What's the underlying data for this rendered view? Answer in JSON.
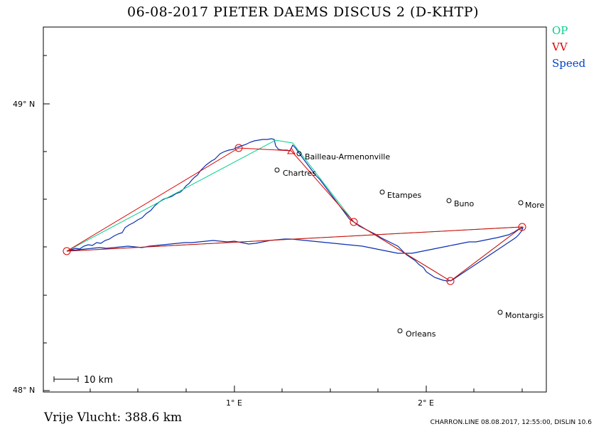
{
  "title": "06-08-2017    PIETER DAEMS    DISCUS 2 (D-KHTP)",
  "legend": [
    {
      "label": "OP",
      "color": "#00d08a"
    },
    {
      "label": "VV",
      "color": "#e00000"
    },
    {
      "label": "Speed",
      "color": "#0044cc"
    }
  ],
  "axes": {
    "y_labels": [
      "49° N",
      "48° N"
    ],
    "x_labels": [
      "1° E",
      "2° E"
    ]
  },
  "scale_bar": "10 km",
  "places": [
    {
      "name": "Bailleau-Armenonville",
      "lon": 1.34,
      "lat": 48.8
    },
    {
      "name": "Chartres",
      "lon": 1.23,
      "lat": 48.73
    },
    {
      "name": "Etampes",
      "lon": 1.76,
      "lat": 48.66
    },
    {
      "name": "Buno",
      "lon": 2.12,
      "lat": 48.63
    },
    {
      "name": "More",
      "lon": 2.5,
      "lat": 48.62
    },
    {
      "name": "Montargis",
      "lon": 2.39,
      "lat": 48.28
    },
    {
      "name": "Orleans",
      "lon": 1.86,
      "lat": 48.21
    }
  ],
  "distance_label": "Vrije Vlucht:  388.6 km",
  "footer_info": "CHARRON.LINE 08.08.2017, 12:55:00, DISLIN 10.6"
}
